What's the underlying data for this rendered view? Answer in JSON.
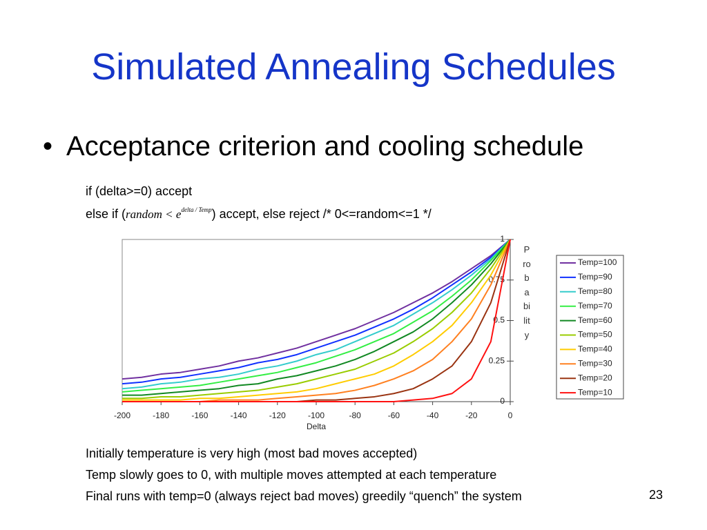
{
  "slide": {
    "title": "Simulated Annealing Schedules",
    "bullet": "Acceptance criterion and cooling schedule",
    "code_line_1": "if (delta>=0) accept",
    "code_line_2_start": "else if (",
    "code_line_2_formula": "random < e",
    "code_line_2_exponent": "delta / Temp",
    "code_line_2_end": ") accept, else reject /* 0<=random<=1 */",
    "notes": [
      "Initially temperature is very high (most bad moves accepted)",
      "Temp slowly goes to 0, with multiple moves attempted at each temperature",
      "Final runs with temp=0 (always reject bad moves) greedily “quench” the system"
    ],
    "page_number": "23"
  },
  "chart_data": {
    "type": "line",
    "x_label": "Delta",
    "y_label": "Probability",
    "x": [
      -200,
      -190,
      -180,
      -170,
      -160,
      -150,
      -140,
      -130,
      -120,
      -110,
      -100,
      -90,
      -80,
      -70,
      -60,
      -50,
      -40,
      -30,
      -20,
      -10,
      0
    ],
    "xlim": [
      -200,
      0
    ],
    "xticks": [
      -200,
      -180,
      -160,
      -140,
      -120,
      -100,
      -80,
      -60,
      -40,
      -20,
      0
    ],
    "ylim": [
      0,
      1
    ],
    "yticks": [
      0,
      0.25,
      0.5,
      0.75,
      1
    ],
    "y_axis_side": "right",
    "legend": "right",
    "series": [
      {
        "name": "Temp=100",
        "color": "#7030a0",
        "values": [
          0.14,
          0.15,
          0.17,
          0.18,
          0.2,
          0.22,
          0.25,
          0.27,
          0.3,
          0.33,
          0.37,
          0.41,
          0.45,
          0.5,
          0.55,
          0.61,
          0.67,
          0.74,
          0.82,
          0.9,
          1
        ]
      },
      {
        "name": "Temp=90",
        "color": "#1030ff",
        "values": [
          0.11,
          0.12,
          0.14,
          0.15,
          0.17,
          0.19,
          0.21,
          0.24,
          0.26,
          0.29,
          0.33,
          0.37,
          0.41,
          0.46,
          0.51,
          0.57,
          0.64,
          0.72,
          0.8,
          0.89,
          1
        ]
      },
      {
        "name": "Temp=80",
        "color": "#33cccc",
        "values": [
          0.08,
          0.09,
          0.11,
          0.12,
          0.14,
          0.15,
          0.17,
          0.2,
          0.22,
          0.25,
          0.29,
          0.32,
          0.37,
          0.42,
          0.47,
          0.54,
          0.61,
          0.69,
          0.78,
          0.88,
          1
        ]
      },
      {
        "name": "Temp=70",
        "color": "#33ee44",
        "values": [
          0.06,
          0.07,
          0.08,
          0.09,
          0.1,
          0.12,
          0.14,
          0.16,
          0.18,
          0.21,
          0.24,
          0.28,
          0.32,
          0.37,
          0.42,
          0.49,
          0.56,
          0.65,
          0.75,
          0.87,
          1
        ]
      },
      {
        "name": "Temp=60",
        "color": "#118822",
        "values": [
          0.04,
          0.04,
          0.05,
          0.06,
          0.07,
          0.08,
          0.1,
          0.11,
          0.14,
          0.16,
          0.19,
          0.22,
          0.26,
          0.31,
          0.37,
          0.43,
          0.51,
          0.61,
          0.72,
          0.85,
          1
        ]
      },
      {
        "name": "Temp=50",
        "color": "#99cc00",
        "values": [
          0.02,
          0.02,
          0.03,
          0.03,
          0.04,
          0.05,
          0.06,
          0.07,
          0.09,
          0.11,
          0.14,
          0.17,
          0.2,
          0.25,
          0.3,
          0.37,
          0.45,
          0.55,
          0.67,
          0.82,
          1
        ]
      },
      {
        "name": "Temp=40",
        "color": "#ffcc00",
        "values": [
          0.01,
          0.01,
          0.01,
          0.01,
          0.02,
          0.02,
          0.03,
          0.04,
          0.05,
          0.06,
          0.08,
          0.11,
          0.14,
          0.17,
          0.22,
          0.29,
          0.37,
          0.47,
          0.61,
          0.78,
          1
        ]
      },
      {
        "name": "Temp=30",
        "color": "#ff8020",
        "values": [
          0,
          0,
          0,
          0,
          0,
          0.01,
          0.01,
          0.01,
          0.02,
          0.03,
          0.04,
          0.05,
          0.07,
          0.1,
          0.14,
          0.19,
          0.26,
          0.37,
          0.51,
          0.72,
          1
        ]
      },
      {
        "name": "Temp=20",
        "color": "#993311",
        "values": [
          0,
          0,
          0,
          0,
          0,
          0,
          0,
          0,
          0,
          0,
          0.01,
          0.01,
          0.02,
          0.03,
          0.05,
          0.08,
          0.14,
          0.22,
          0.37,
          0.61,
          1
        ]
      },
      {
        "name": "Temp=10",
        "color": "#ff1010",
        "values": [
          0,
          0,
          0,
          0,
          0,
          0,
          0,
          0,
          0,
          0,
          0,
          0,
          0,
          0,
          0,
          0.01,
          0.02,
          0.05,
          0.14,
          0.37,
          1
        ]
      }
    ]
  }
}
